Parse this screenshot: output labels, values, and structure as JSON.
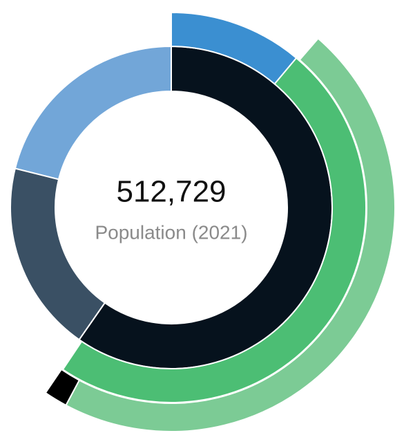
{
  "chart_data": {
    "type": "radial-rings",
    "center_value": "512,729",
    "center_label": "Population (2021)",
    "rings": [
      {
        "segments": [
          {
            "start": 0,
            "value": 59.7,
            "color": "#06121d"
          },
          {
            "start": 59.7,
            "value": 19.2,
            "color": "#3a5064"
          },
          {
            "start": 78.9,
            "value": 21.1,
            "color": "#72a6d8"
          }
        ]
      },
      {
        "segments": [
          {
            "start": 0,
            "value": 11.1,
            "color": "#3b8fd1"
          },
          {
            "start": 11.1,
            "value": 48.3,
            "color": "#4cbe74"
          }
        ]
      },
      {
        "segments": [
          {
            "start": 11.4,
            "value": 46.4,
            "color": "#7ccb95"
          },
          {
            "start": 57.8,
            "value": 1.7,
            "color": "#000000"
          }
        ]
      }
    ]
  }
}
